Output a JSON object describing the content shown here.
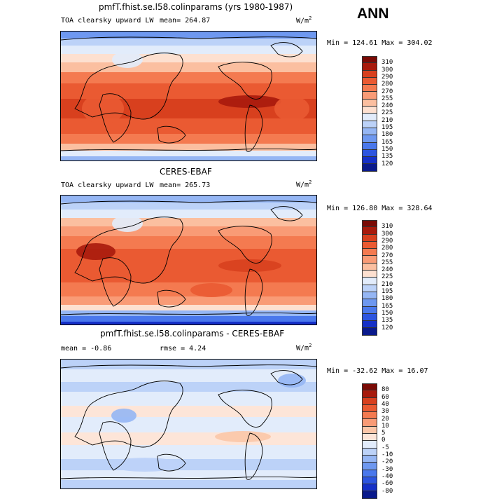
{
  "season": "ANN",
  "chart_data": [
    {
      "type": "heatmap",
      "title": "pmfT.fhist.se.l58.colinparams (yrs 1980-1987)",
      "field": "TOA clearsky upward LW",
      "mean_label": "mean= 264.87",
      "units": "W/m",
      "units_sup": "2",
      "minmax": "Min = 124.61 Max = 304.02",
      "min": 124.61,
      "max": 304.02,
      "mean": 264.87,
      "levels": [
        120,
        135,
        150,
        165,
        180,
        195,
        210,
        225,
        240,
        255,
        270,
        280,
        290,
        300,
        310
      ]
    },
    {
      "type": "heatmap",
      "title": "CERES-EBAF",
      "field": "TOA clearsky upward LW",
      "mean_label": "mean= 265.73",
      "units": "W/m",
      "units_sup": "2",
      "minmax": "Min = 126.80 Max = 328.64",
      "min": 126.8,
      "max": 328.64,
      "mean": 265.73,
      "levels": [
        120,
        135,
        150,
        165,
        180,
        195,
        210,
        225,
        240,
        255,
        270,
        280,
        290,
        300,
        310
      ]
    },
    {
      "type": "heatmap",
      "title": "pmfT.fhist.se.l58.colinparams - CERES-EBAF",
      "mean_label": "mean =  -0.86",
      "rmse_label": "rmse =   4.24",
      "units": "W/m",
      "units_sup": "2",
      "minmax": "Min = -32.62 Max =  16.07",
      "min": -32.62,
      "max": 16.07,
      "mean": -0.86,
      "rmse": 4.24,
      "levels": [
        "-80",
        "-60",
        "-40",
        "-30",
        "-20",
        "-10",
        "-5",
        "0",
        "5",
        "10",
        "20",
        "30",
        "40",
        "60",
        "80"
      ]
    }
  ],
  "colors": {
    "abs_scale": [
      "#0a1a8c",
      "#1530c8",
      "#2d55e0",
      "#4a78ec",
      "#6e98f0",
      "#95b6f4",
      "#bcd2f8",
      "#e2ecfb",
      "#fde0d0",
      "#fbbfa0",
      "#f99b76",
      "#f47a50",
      "#ea5a32",
      "#d8401e",
      "#a81a0c",
      "#7a0a05"
    ],
    "diff_scale": [
      "#0a1a8c",
      "#1530c8",
      "#2d55e0",
      "#4a78ec",
      "#6e98f0",
      "#95b6f4",
      "#bcd2f8",
      "#e2ecfb",
      "#fde5d8",
      "#fbc6a8",
      "#f99b76",
      "#f47a50",
      "#ea5a32",
      "#d8401e",
      "#a81a0c",
      "#7a0a05"
    ]
  }
}
